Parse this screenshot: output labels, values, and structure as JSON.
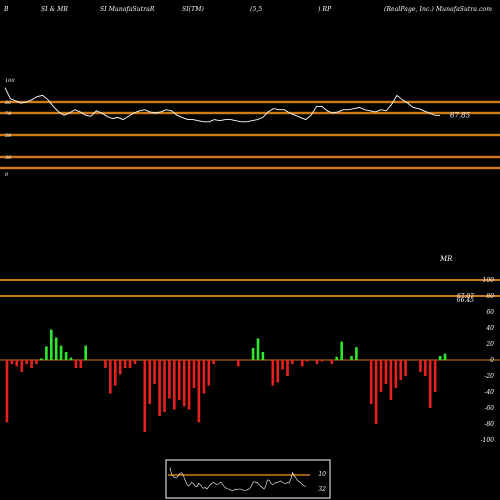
{
  "header": {
    "parts": [
      "B",
      "SI & MR",
      "SI MunafaSutraR",
      "SI(TM)",
      "(5,5",
      ") RP",
      "(RealPage, Inc.) MunafaSutra.com"
    ]
  },
  "colors": {
    "band": "#d07a17",
    "line": "#ffffff",
    "bar_up": "#2ee82e",
    "bar_down": "#e82020",
    "background": "#000000"
  },
  "chart_data": [
    {
      "type": "line",
      "name": "RSI",
      "ylim": [
        0,
        100
      ],
      "yticks": [
        "100",
        "80",
        "70",
        "50",
        "30",
        "0"
      ],
      "bands": [
        80,
        70,
        50,
        30,
        20
      ],
      "last_value_label": "67.85",
      "values": [
        93,
        83,
        81,
        79,
        80,
        82,
        85,
        86,
        82,
        76,
        71,
        68,
        70,
        73,
        71,
        68,
        67,
        72,
        70,
        67,
        65,
        66,
        64,
        67,
        70,
        72,
        73,
        71,
        70,
        71,
        73,
        72,
        68,
        66,
        64,
        64,
        63,
        62,
        62,
        64,
        63,
        64,
        64,
        63,
        62,
        62,
        63,
        64,
        66,
        71,
        74,
        73,
        73,
        70,
        68,
        66,
        64,
        68,
        76,
        76,
        72,
        70,
        71,
        73,
        73,
        74,
        75,
        73,
        72,
        71,
        73,
        72,
        78,
        86,
        82,
        79,
        75,
        74,
        72,
        70,
        68,
        67.85
      ]
    },
    {
      "type": "bar",
      "name": "MR",
      "title": "MR",
      "ylim": [
        -100,
        100
      ],
      "yticks": [
        "100",
        "80",
        "60",
        "40",
        "20",
        "0",
        "-20",
        "-40",
        "-60",
        "-80",
        "-100"
      ],
      "last_value_labels": [
        "67.07",
        "66.45"
      ],
      "values": [
        -78,
        -5,
        -8,
        -15,
        -5,
        -10,
        -5,
        2,
        17,
        38,
        28,
        18,
        10,
        3,
        -10,
        -10,
        18,
        0,
        0,
        0,
        -10,
        -42,
        -32,
        -18,
        -10,
        -10,
        -5,
        0,
        -90,
        -55,
        -30,
        -70,
        -65,
        -48,
        -62,
        -50,
        -58,
        -62,
        -35,
        -78,
        -42,
        -32,
        -5,
        0,
        0,
        0,
        0,
        -8,
        0,
        0,
        15,
        27,
        10,
        0,
        -32,
        -28,
        -12,
        -20,
        -5,
        0,
        -8,
        -2,
        0,
        -5,
        -2,
        0,
        -5,
        4,
        23,
        0,
        5,
        16,
        0,
        0,
        -55,
        -80,
        -40,
        -30,
        -50,
        -35,
        -25,
        -20,
        0,
        0,
        -15,
        -20,
        -60,
        -40,
        5,
        8
      ]
    }
  ],
  "mini": {
    "labels": [
      "10",
      "32"
    ]
  }
}
